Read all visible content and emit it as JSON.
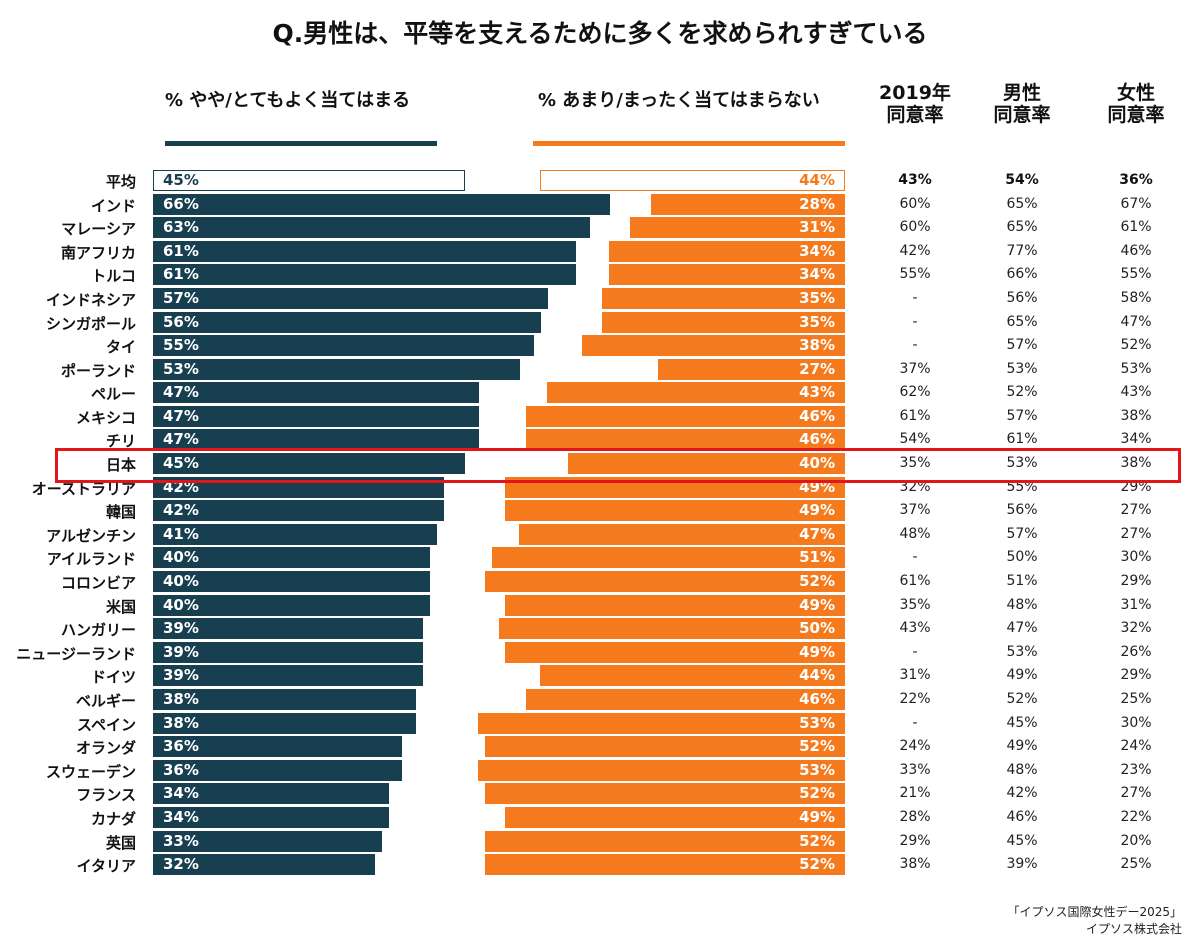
{
  "chart_data": {
    "type": "bar",
    "title": "Q.男性は、平等を支えるために多くを求められすぎている",
    "series": [
      {
        "name": "% やや/とてもよく当てはまる",
        "color": "#173f4f",
        "values": [
          45,
          66,
          63,
          61,
          61,
          57,
          56,
          55,
          53,
          47,
          47,
          47,
          45,
          42,
          42,
          41,
          40,
          40,
          40,
          39,
          39,
          39,
          38,
          38,
          36,
          36,
          34,
          34,
          33,
          32
        ]
      },
      {
        "name": "% あまり/まったく当てはまらない",
        "color": "#f57a1e",
        "values": [
          44,
          28,
          31,
          34,
          34,
          35,
          35,
          38,
          27,
          43,
          46,
          46,
          40,
          49,
          49,
          47,
          51,
          52,
          49,
          50,
          49,
          44,
          46,
          53,
          52,
          53,
          52,
          49,
          52,
          52
        ]
      }
    ],
    "categories": [
      "平均",
      "インド",
      "マレーシア",
      "南アフリカ",
      "トルコ",
      "インドネシア",
      "シンガポール",
      "タイ",
      "ポーランド",
      "ペルー",
      "メキシコ",
      "チリ",
      "日本",
      "オーストラリア",
      "韓国",
      "アルゼンチン",
      "アイルランド",
      "コロンビア",
      "米国",
      "ハンガリー",
      "ニュージーランド",
      "ドイツ",
      "ベルギー",
      "スペイン",
      "オランダ",
      "スウェーデン",
      "フランス",
      "カナダ",
      "英国",
      "イタリア"
    ],
    "highlighted_category": "日本",
    "highlight_color": "#e0161b",
    "table": {
      "headers": [
        "2019年\n同意率",
        "男性\n同意率",
        "女性\n同意率"
      ],
      "rows": [
        [
          "43%",
          "54%",
          "36%"
        ],
        [
          "60%",
          "65%",
          "67%"
        ],
        [
          "60%",
          "65%",
          "61%"
        ],
        [
          "42%",
          "77%",
          "46%"
        ],
        [
          "55%",
          "66%",
          "55%"
        ],
        [
          "-",
          "56%",
          "58%"
        ],
        [
          "-",
          "65%",
          "47%"
        ],
        [
          "-",
          "57%",
          "52%"
        ],
        [
          "37%",
          "53%",
          "53%"
        ],
        [
          "62%",
          "52%",
          "43%"
        ],
        [
          "61%",
          "57%",
          "38%"
        ],
        [
          "54%",
          "61%",
          "34%"
        ],
        [
          "35%",
          "53%",
          "38%"
        ],
        [
          "32%",
          "55%",
          "29%"
        ],
        [
          "37%",
          "56%",
          "27%"
        ],
        [
          "48%",
          "57%",
          "27%"
        ],
        [
          "-",
          "50%",
          "30%"
        ],
        [
          "61%",
          "51%",
          "29%"
        ],
        [
          "35%",
          "48%",
          "31%"
        ],
        [
          "43%",
          "47%",
          "32%"
        ],
        [
          "-",
          "53%",
          "26%"
        ],
        [
          "31%",
          "49%",
          "29%"
        ],
        [
          "22%",
          "52%",
          "25%"
        ],
        [
          "-",
          "45%",
          "30%"
        ],
        [
          "24%",
          "49%",
          "24%"
        ],
        [
          "33%",
          "48%",
          "23%"
        ],
        [
          "21%",
          "42%",
          "27%"
        ],
        [
          "28%",
          "46%",
          "22%"
        ],
        [
          "29%",
          "45%",
          "20%"
        ],
        [
          "38%",
          "39%",
          "25%"
        ]
      ]
    }
  },
  "source": {
    "line1": "「イプソス国際女性デー2025」",
    "line2": "イプソス株式会社"
  }
}
